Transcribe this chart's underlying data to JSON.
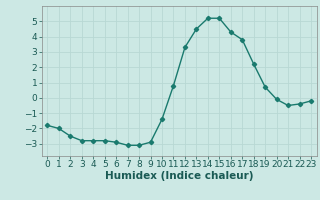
{
  "x": [
    0,
    1,
    2,
    3,
    4,
    5,
    6,
    7,
    8,
    9,
    10,
    11,
    12,
    13,
    14,
    15,
    16,
    17,
    18,
    19,
    20,
    21,
    22,
    23
  ],
  "y": [
    -1.8,
    -2.0,
    -2.5,
    -2.8,
    -2.8,
    -2.8,
    -2.9,
    -3.1,
    -3.1,
    -2.9,
    -1.4,
    0.8,
    3.3,
    4.5,
    5.2,
    5.2,
    4.3,
    3.8,
    2.2,
    0.7,
    -0.1,
    -0.5,
    -0.4,
    -0.2
  ],
  "line_color": "#1a7a6e",
  "marker": "D",
  "marker_size": 2.2,
  "background_color": "#cce8e4",
  "grid_color": "#b8d8d4",
  "xlabel": "Humidex (Indice chaleur)",
  "xlim": [
    -0.5,
    23.5
  ],
  "ylim": [
    -3.8,
    6.0
  ],
  "yticks": [
    -3,
    -2,
    -1,
    0,
    1,
    2,
    3,
    4,
    5
  ],
  "xticks": [
    0,
    1,
    2,
    3,
    4,
    5,
    6,
    7,
    8,
    9,
    10,
    11,
    12,
    13,
    14,
    15,
    16,
    17,
    18,
    19,
    20,
    21,
    22,
    23
  ],
  "tick_fontsize": 6.5,
  "xlabel_fontsize": 7.5,
  "line_width": 1.0
}
